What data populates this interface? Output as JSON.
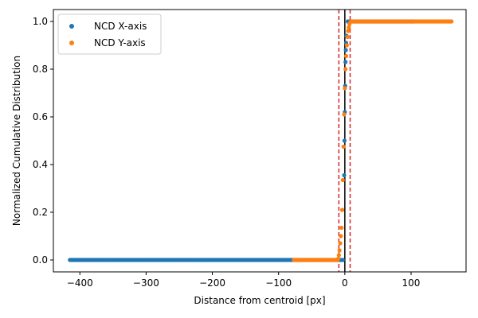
{
  "chart_data": {
    "type": "scatter",
    "title": "",
    "xlabel": "Distance from centroid [px]",
    "ylabel": "Normalized Cumulative Distribution",
    "xlim": [
      -440,
      183
    ],
    "ylim": [
      -0.05,
      1.05
    ],
    "xticks": [
      -400,
      -300,
      -200,
      -100,
      0,
      100
    ],
    "xtick_labels": [
      "−400",
      "−300",
      "−200",
      "−100",
      "0",
      "100"
    ],
    "yticks": [
      0.0,
      0.2,
      0.4,
      0.6,
      0.8,
      1.0
    ],
    "ytick_labels": [
      "0.0",
      "0.2",
      "0.4",
      "0.6",
      "0.8",
      "1.0"
    ],
    "grid": false,
    "legend": {
      "placement": "top-left"
    },
    "reference_lines": [
      {
        "x": 0,
        "color": "#000000",
        "style": "solid"
      },
      {
        "x": -9,
        "color": "#d62728",
        "style": "dashed"
      },
      {
        "x": 8,
        "color": "#d62728",
        "style": "dashed"
      }
    ],
    "series": [
      {
        "name": "NCD X-axis",
        "color": "#1f77b4",
        "x_range": [
          -415,
          105
        ],
        "step": 2,
        "points": [
          [
            -1,
            0.355
          ],
          [
            -0.5,
            0.5
          ],
          [
            0,
            0.62
          ],
          [
            0.5,
            0.73
          ],
          [
            1,
            0.83
          ],
          [
            1.5,
            0.88
          ],
          [
            2,
            0.91
          ],
          [
            2.5,
            0.94
          ]
        ]
      },
      {
        "name": "NCD Y-axis",
        "color": "#ff7f0e",
        "x_range": [
          -77,
          161
        ],
        "step": 2,
        "points": [
          [
            -10,
            0.005
          ],
          [
            -9,
            0.02
          ],
          [
            -8,
            0.04
          ],
          [
            -7,
            0.07
          ],
          [
            -6,
            0.1
          ],
          [
            -5,
            0.135
          ],
          [
            -4,
            0.21
          ],
          [
            -3,
            0.335
          ],
          [
            -2,
            0.475
          ],
          [
            -1,
            0.61
          ],
          [
            0,
            0.72
          ],
          [
            1,
            0.8
          ],
          [
            2,
            0.855
          ],
          [
            3,
            0.9
          ],
          [
            4,
            0.935
          ],
          [
            5,
            0.96
          ],
          [
            6,
            0.975
          ],
          [
            7,
            0.99
          ]
        ]
      }
    ]
  }
}
